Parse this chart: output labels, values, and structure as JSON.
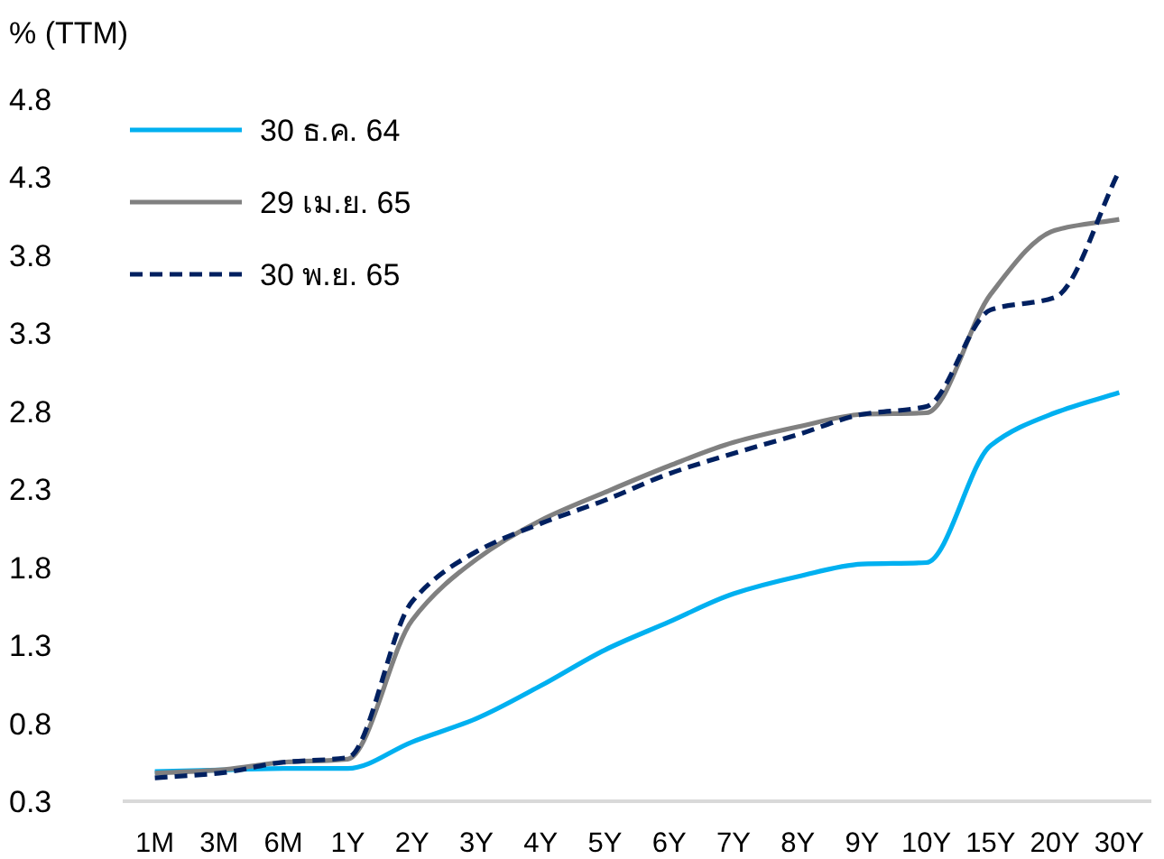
{
  "chart_data": {
    "type": "line",
    "ylabel": "% (TTM)",
    "categories": [
      "1M",
      "3M",
      "6M",
      "1Y",
      "2Y",
      "3Y",
      "4Y",
      "5Y",
      "6Y",
      "7Y",
      "8Y",
      "9Y",
      "10Y",
      "15Y",
      "20Y",
      "30Y"
    ],
    "series": [
      {
        "name": "30 ธ.ค. 64",
        "color": "#00b0f0",
        "line_style": "solid",
        "values": [
          0.49,
          0.5,
          0.51,
          0.51,
          0.68,
          0.83,
          1.04,
          1.27,
          1.45,
          1.63,
          1.74,
          1.82,
          1.83,
          2.58,
          2.79,
          2.92
        ]
      },
      {
        "name": "29 เม.ย. 65",
        "color": "#808080",
        "line_style": "solid",
        "values": [
          0.48,
          0.5,
          0.55,
          0.57,
          1.46,
          1.85,
          2.1,
          2.28,
          2.45,
          2.6,
          2.7,
          2.78,
          2.79,
          3.55,
          3.96,
          4.03
        ]
      },
      {
        "name": "30 พ.ย. 65",
        "color": "#002060",
        "line_style": "dashed",
        "values": [
          0.45,
          0.48,
          0.55,
          0.58,
          1.58,
          1.9,
          2.08,
          2.23,
          2.4,
          2.53,
          2.65,
          2.78,
          2.83,
          3.45,
          3.53,
          4.34
        ]
      }
    ],
    "ylim": [
      0.3,
      4.8
    ],
    "yticks": [
      0.3,
      0.8,
      1.3,
      1.8,
      2.3,
      2.8,
      3.3,
      3.8,
      4.3,
      4.8
    ],
    "legend": "top left",
    "grid": false
  }
}
